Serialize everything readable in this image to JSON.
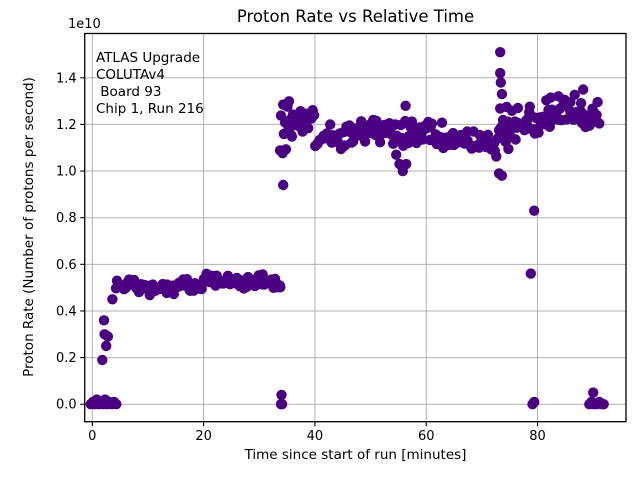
{
  "chart_data": {
    "type": "scatter",
    "title": "Proton Rate vs Relative Time",
    "xlabel": "Time since start of run [minutes]",
    "ylabel": "Proton Rate (Number of protons per second)",
    "offset_text": "1e10",
    "annotation_lines": [
      "ATLAS Upgrade",
      "COLUTAv4",
      " Board 93",
      "Chip 1, Run 216"
    ],
    "legend": "none",
    "grid": true,
    "marker_color": "#4B0082",
    "grid_color": "#b0b0b0",
    "frame_color": "#000000",
    "background_color": "#ffffff",
    "xlim": [
      -1.37,
      95.9
    ],
    "ylim": [
      -0.075,
      1.59
    ],
    "xticks": [
      0,
      20,
      40,
      60,
      80
    ],
    "yticks": [
      0.0,
      0.2,
      0.4,
      0.6,
      0.8,
      1.0,
      1.2,
      1.4
    ],
    "y_units": "1e10 protons per second",
    "points": [
      [
        -0.3,
        0.0
      ],
      [
        0.1,
        0.01
      ],
      [
        0.4,
        0.0
      ],
      [
        0.8,
        0.02
      ],
      [
        1.1,
        0.0
      ],
      [
        1.5,
        0.01
      ],
      [
        1.9,
        0.0
      ],
      [
        2.3,
        0.02
      ],
      [
        2.7,
        0.0
      ],
      [
        3.1,
        0.01
      ],
      [
        3.5,
        0.0
      ],
      [
        3.9,
        0.01
      ],
      [
        4.3,
        0.0
      ],
      [
        1.8,
        0.19
      ],
      [
        2.1,
        0.36
      ],
      [
        2.2,
        0.3
      ],
      [
        2.8,
        0.29
      ],
      [
        2.5,
        0.25
      ],
      [
        3.6,
        0.45
      ],
      [
        33.9,
        0.0
      ],
      [
        34.1,
        0.0
      ],
      [
        34.0,
        0.04
      ],
      [
        34.3,
        0.94
      ],
      [
        56.3,
        1.28
      ],
      [
        54.6,
        1.07
      ],
      [
        55.2,
        1.03
      ],
      [
        55.8,
        1.0
      ],
      [
        56.4,
        1.03
      ],
      [
        73.3,
        1.51
      ],
      [
        73.3,
        1.42
      ],
      [
        73.4,
        1.38
      ],
      [
        73.6,
        1.33
      ],
      [
        73.1,
        0.99
      ],
      [
        73.6,
        0.98
      ],
      [
        78.8,
        0.56
      ],
      [
        79.4,
        0.83
      ],
      [
        79.1,
        0.0
      ],
      [
        79.4,
        0.01
      ],
      [
        88.2,
        1.35
      ],
      [
        90.0,
        0.05
      ],
      [
        89.3,
        0.0
      ],
      [
        89.7,
        0.01
      ],
      [
        90.1,
        0.0
      ],
      [
        90.6,
        0.0
      ],
      [
        91.1,
        0.01
      ],
      [
        91.5,
        0.0
      ],
      [
        91.9,
        0.0
      ]
    ],
    "bands": [
      {
        "t0": 4.2,
        "t1": 10.0,
        "v": 0.51,
        "spread": 0.025,
        "n": 26,
        "seed": 11
      },
      {
        "t0": 10.0,
        "t1": 15.0,
        "v": 0.495,
        "spread": 0.022,
        "n": 22,
        "seed": 22
      },
      {
        "t0": 15.0,
        "t1": 20.0,
        "v": 0.515,
        "spread": 0.025,
        "n": 22,
        "seed": 33
      },
      {
        "t0": 20.0,
        "t1": 26.0,
        "v": 0.53,
        "spread": 0.025,
        "n": 26,
        "seed": 44
      },
      {
        "t0": 26.0,
        "t1": 34.0,
        "v": 0.525,
        "spread": 0.028,
        "n": 34,
        "seed": 55
      },
      {
        "t0": 33.7,
        "t1": 36.2,
        "v": 1.19,
        "spread": 0.1,
        "n": 14,
        "seed": 66
      },
      {
        "t0": 36.0,
        "t1": 40.0,
        "v": 1.21,
        "spread": 0.05,
        "n": 18,
        "seed": 77
      },
      {
        "t0": 40.0,
        "t1": 47.0,
        "v": 1.15,
        "spread": 0.045,
        "n": 30,
        "seed": 88
      },
      {
        "t0": 47.0,
        "t1": 54.0,
        "v": 1.17,
        "spread": 0.045,
        "n": 30,
        "seed": 99
      },
      {
        "t0": 54.0,
        "t1": 58.0,
        "v": 1.16,
        "spread": 0.05,
        "n": 16,
        "seed": 110
      },
      {
        "t0": 58.0,
        "t1": 63.0,
        "v": 1.17,
        "spread": 0.04,
        "n": 22,
        "seed": 121
      },
      {
        "t0": 63.0,
        "t1": 70.0,
        "v": 1.13,
        "spread": 0.04,
        "n": 30,
        "seed": 132
      },
      {
        "t0": 70.0,
        "t1": 73.0,
        "v": 1.11,
        "spread": 0.05,
        "n": 12,
        "seed": 143
      },
      {
        "t0": 72.9,
        "t1": 76.6,
        "v": 1.2,
        "spread": 0.085,
        "n": 26,
        "seed": 154
      },
      {
        "t0": 77.6,
        "t1": 80.6,
        "v": 1.17,
        "spread": 0.095,
        "n": 16,
        "seed": 165
      },
      {
        "t0": 80.5,
        "t1": 84.0,
        "v": 1.24,
        "spread": 0.07,
        "n": 18,
        "seed": 176
      },
      {
        "t0": 84.0,
        "t1": 88.2,
        "v": 1.26,
        "spread": 0.055,
        "n": 20,
        "seed": 187
      },
      {
        "t0": 88.0,
        "t1": 91.2,
        "v": 1.24,
        "spread": 0.05,
        "n": 14,
        "seed": 198
      }
    ]
  }
}
